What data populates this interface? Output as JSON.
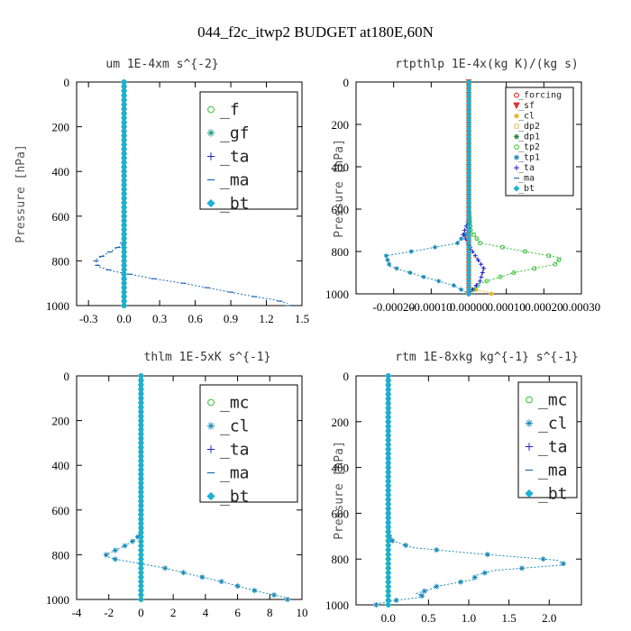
{
  "figure": {
    "title": "044_f2c_itwp2  BUDGET at180E,60N"
  },
  "colors": {
    "f": "#30c030",
    "gf": "#1a9a8a",
    "ta": "#2020cc",
    "ma": "#1a6ab8",
    "bt": "#1ab0d8",
    "mc": "#30c030",
    "cl": "#1a8ab8",
    "forcing": "#d01010",
    "sf": "#e03030",
    "cl_small": "#e0b020",
    "dp2": "#e0c060",
    "dp1": "#208830",
    "tp2": "#30c030",
    "tp1": "#1a8ab8"
  },
  "chart_data": [
    {
      "type": "line",
      "title": "um   1E-4xm s^{-2}",
      "ylabel": "Pressure [hPa]",
      "xlabel": "",
      "xlim": [
        -0.4,
        1.5
      ],
      "ylim": [
        1000,
        0
      ],
      "xticks": [
        -0.3,
        0.0,
        0.3,
        0.6,
        0.9,
        1.2,
        1.5
      ],
      "xtick_labels": [
        "-0.3",
        "0.0",
        "0.3",
        "0.6",
        "0.9",
        "1.2",
        "1.5"
      ],
      "yticks": [
        0,
        200,
        400,
        600,
        800,
        1000
      ],
      "ytick_labels": [
        "0",
        "200",
        "400",
        "600",
        "800",
        "1000"
      ],
      "legend_location": "top-right",
      "legend_font": 18,
      "series": [
        {
          "name": "_f",
          "color_key": "f",
          "marker": "circle",
          "points": [
            [
              0,
              0
            ],
            [
              0,
              1000
            ]
          ]
        },
        {
          "name": "_gf",
          "color_key": "gf",
          "marker": "star",
          "points": [
            [
              0,
              0
            ],
            [
              0,
              1000
            ]
          ]
        },
        {
          "name": "_ta",
          "color_key": "ta",
          "marker": "plus",
          "points": [
            [
              0,
              0
            ],
            [
              0,
              1000
            ]
          ]
        },
        {
          "name": "_ma",
          "color_key": "ma",
          "marker": "dash",
          "points": [
            [
              0,
              0
            ],
            [
              0,
              700
            ],
            [
              -0.02,
              730
            ],
            [
              -0.12,
              760
            ],
            [
              -0.24,
              795
            ],
            [
              -0.22,
              825
            ],
            [
              -0.1,
              845
            ],
            [
              0.05,
              860
            ],
            [
              0.25,
              880
            ],
            [
              0.5,
              900
            ],
            [
              0.7,
              920
            ],
            [
              0.9,
              940
            ],
            [
              1.1,
              960
            ],
            [
              1.28,
              975
            ],
            [
              1.38,
              990
            ]
          ]
        },
        {
          "name": "_bt",
          "color_key": "bt",
          "marker": "diamond",
          "points": [
            [
              0,
              0
            ],
            [
              0,
              1000
            ]
          ]
        }
      ]
    },
    {
      "type": "line",
      "title": "rtpthlp   1E-4x(kg K)/(kg s)",
      "ylabel": "Pressure [hPa]",
      "xlabel": "",
      "xlim": [
        -0.0003,
        0.0003
      ],
      "ylim": [
        1000,
        0
      ],
      "xticks": [
        -0.0002,
        -0.0001,
        0.0,
        0.0001,
        0.0002,
        0.0003
      ],
      "xtick_labels": [
        "-0.00020",
        "-0.00010",
        "0.00000",
        "0.00010",
        "0.00020",
        "0.00030"
      ],
      "yticks": [
        0,
        200,
        400,
        600,
        800,
        1000
      ],
      "ytick_labels": [
        "0",
        "200",
        "400",
        "600",
        "800",
        "1000"
      ],
      "legend_location": "top-right",
      "legend_font": 10,
      "series": [
        {
          "name": "_forcing",
          "color_key": "forcing",
          "marker": "circle",
          "points": [
            [
              0,
              0
            ],
            [
              0,
              1000
            ]
          ]
        },
        {
          "name": "_sf",
          "color_key": "sf",
          "marker": "triangle",
          "points": [
            [
              0,
              0
            ],
            [
              0,
              1000
            ]
          ]
        },
        {
          "name": "_cl",
          "color_key": "cl_small",
          "marker": "star",
          "points": [
            [
              0,
              0
            ],
            [
              0,
              970
            ],
            [
              3e-05,
              985
            ],
            [
              6e-05,
              995
            ]
          ]
        },
        {
          "name": "_dp2",
          "color_key": "dp2",
          "marker": "square",
          "points": [
            [
              0,
              0
            ],
            [
              0,
              1000
            ]
          ]
        },
        {
          "name": "_dp1",
          "color_key": "dp1",
          "marker": "star",
          "points": [
            [
              0,
              0
            ],
            [
              0,
              1000
            ]
          ]
        },
        {
          "name": "_tp2",
          "color_key": "tp2",
          "marker": "circle",
          "points": [
            [
              0,
              0
            ],
            [
              0,
              600
            ],
            [
              5e-06,
              700
            ],
            [
              3e-05,
              760
            ],
            [
              0.00015,
              800
            ],
            [
              0.000245,
              830
            ],
            [
              0.00023,
              860
            ],
            [
              0.00012,
              900
            ],
            [
              3e-05,
              950
            ],
            [
              0,
              1000
            ]
          ]
        },
        {
          "name": "_tp1",
          "color_key": "tp1",
          "marker": "star",
          "points": [
            [
              0,
              0
            ],
            [
              0,
              700
            ],
            [
              -3e-05,
              760
            ],
            [
              -0.00012,
              790
            ],
            [
              -0.00022,
              820
            ],
            [
              -0.00021,
              870
            ],
            [
              -0.00012,
              920
            ],
            [
              -4e-05,
              960
            ],
            [
              0,
              1000
            ]
          ]
        },
        {
          "name": "_ta",
          "color_key": "ta",
          "marker": "plus",
          "points": [
            [
              0,
              0
            ],
            [
              0,
              650
            ],
            [
              -1.5e-05,
              720
            ],
            [
              1e-05,
              800
            ],
            [
              4e-05,
              880
            ],
            [
              3e-05,
              940
            ],
            [
              0,
              1000
            ]
          ]
        },
        {
          "name": "_ma",
          "color_key": "ma",
          "marker": "dash",
          "points": [
            [
              0,
              0
            ],
            [
              0,
              1000
            ]
          ]
        },
        {
          "name": "_bt",
          "color_key": "bt",
          "marker": "diamond",
          "points": [
            [
              0,
              0
            ],
            [
              0,
              1000
            ]
          ]
        }
      ]
    },
    {
      "type": "line",
      "title": "thlm   1E-5xK s^{-1}",
      "ylabel": "",
      "xlabel": "",
      "xlim": [
        -4,
        10
      ],
      "ylim": [
        1000,
        0
      ],
      "xticks": [
        -4,
        -2,
        0,
        2,
        4,
        6,
        8,
        10
      ],
      "xtick_labels": [
        "-4",
        "-2",
        "0",
        "2",
        "4",
        "6",
        "8",
        "10"
      ],
      "yticks": [
        0,
        200,
        400,
        600,
        800,
        1000
      ],
      "ytick_labels": [
        "0",
        "200",
        "400",
        "600",
        "800",
        "1000"
      ],
      "legend_location": "top-right",
      "legend_font": 18,
      "series": [
        {
          "name": "_mc",
          "color_key": "mc",
          "marker": "circle",
          "points": [
            [
              0,
              0
            ],
            [
              0,
              1000
            ]
          ]
        },
        {
          "name": "_cl",
          "color_key": "cl",
          "marker": "star",
          "points": [
            [
              0,
              0
            ],
            [
              0,
              700
            ],
            [
              -0.3,
              730
            ],
            [
              -1.0,
              760
            ],
            [
              -1.9,
              790
            ],
            [
              -2.3,
              805
            ],
            [
              -1.6,
              820
            ],
            [
              0,
              840
            ],
            [
              1.5,
              860
            ],
            [
              3.2,
              890
            ],
            [
              5.0,
              920
            ],
            [
              6.5,
              950
            ],
            [
              7.6,
              970
            ],
            [
              8.6,
              985
            ],
            [
              9.1,
              995
            ]
          ]
        },
        {
          "name": "_ta",
          "color_key": "ta",
          "marker": "plus",
          "points": [
            [
              0,
              0
            ],
            [
              0,
              1000
            ]
          ]
        },
        {
          "name": "_ma",
          "color_key": "ma",
          "marker": "dash",
          "points": [
            [
              0,
              0
            ],
            [
              0,
              1000
            ]
          ]
        },
        {
          "name": "_bt",
          "color_key": "bt",
          "marker": "diamond",
          "points": [
            [
              0,
              0
            ],
            [
              0,
              1000
            ]
          ]
        }
      ]
    },
    {
      "type": "line",
      "title": "rtm   1E-8xkg kg^{-1} s^{-1}",
      "ylabel": "Pressure [hPa]",
      "xlabel": "",
      "xlim": [
        -0.4,
        2.4
      ],
      "ylim": [
        1000,
        0
      ],
      "xticks": [
        0.0,
        0.5,
        1.0,
        1.5,
        2.0
      ],
      "xtick_labels": [
        "0.0",
        "0.5",
        "1.0",
        "1.5",
        "2.0"
      ],
      "yticks": [
        0,
        200,
        400,
        600,
        800,
        1000
      ],
      "ytick_labels": [
        "0",
        "200",
        "400",
        "600",
        "800",
        "1000"
      ],
      "legend_location": "top-right",
      "legend_font": 18,
      "series": [
        {
          "name": "_mc",
          "color_key": "mc",
          "marker": "circle",
          "points": [
            [
              0,
              0
            ],
            [
              0,
              1000
            ]
          ]
        },
        {
          "name": "_cl",
          "color_key": "cl",
          "marker": "star",
          "points": [
            [
              0,
              0
            ],
            [
              0,
              690
            ],
            [
              0.05,
              720
            ],
            [
              0.3,
              750
            ],
            [
              0.9,
              770
            ],
            [
              1.4,
              785
            ],
            [
              2.1,
              805
            ],
            [
              2.2,
              825
            ],
            [
              1.3,
              850
            ],
            [
              1.1,
              870
            ],
            [
              1.05,
              890
            ],
            [
              0.6,
              920
            ],
            [
              0.5,
              935
            ],
            [
              0.35,
              950
            ],
            [
              0.45,
              965
            ],
            [
              0.1,
              980
            ],
            [
              -0.05,
              990
            ],
            [
              -0.15,
              995
            ]
          ]
        },
        {
          "name": "_ta",
          "color_key": "ta",
          "marker": "plus",
          "points": [
            [
              0,
              0
            ],
            [
              0,
              1000
            ]
          ]
        },
        {
          "name": "_ma",
          "color_key": "ma",
          "marker": "dash",
          "points": [
            [
              0,
              0
            ],
            [
              0,
              1000
            ]
          ]
        },
        {
          "name": "_bt",
          "color_key": "bt",
          "marker": "diamond",
          "points": [
            [
              0,
              0
            ],
            [
              0,
              1000
            ]
          ]
        }
      ]
    }
  ]
}
